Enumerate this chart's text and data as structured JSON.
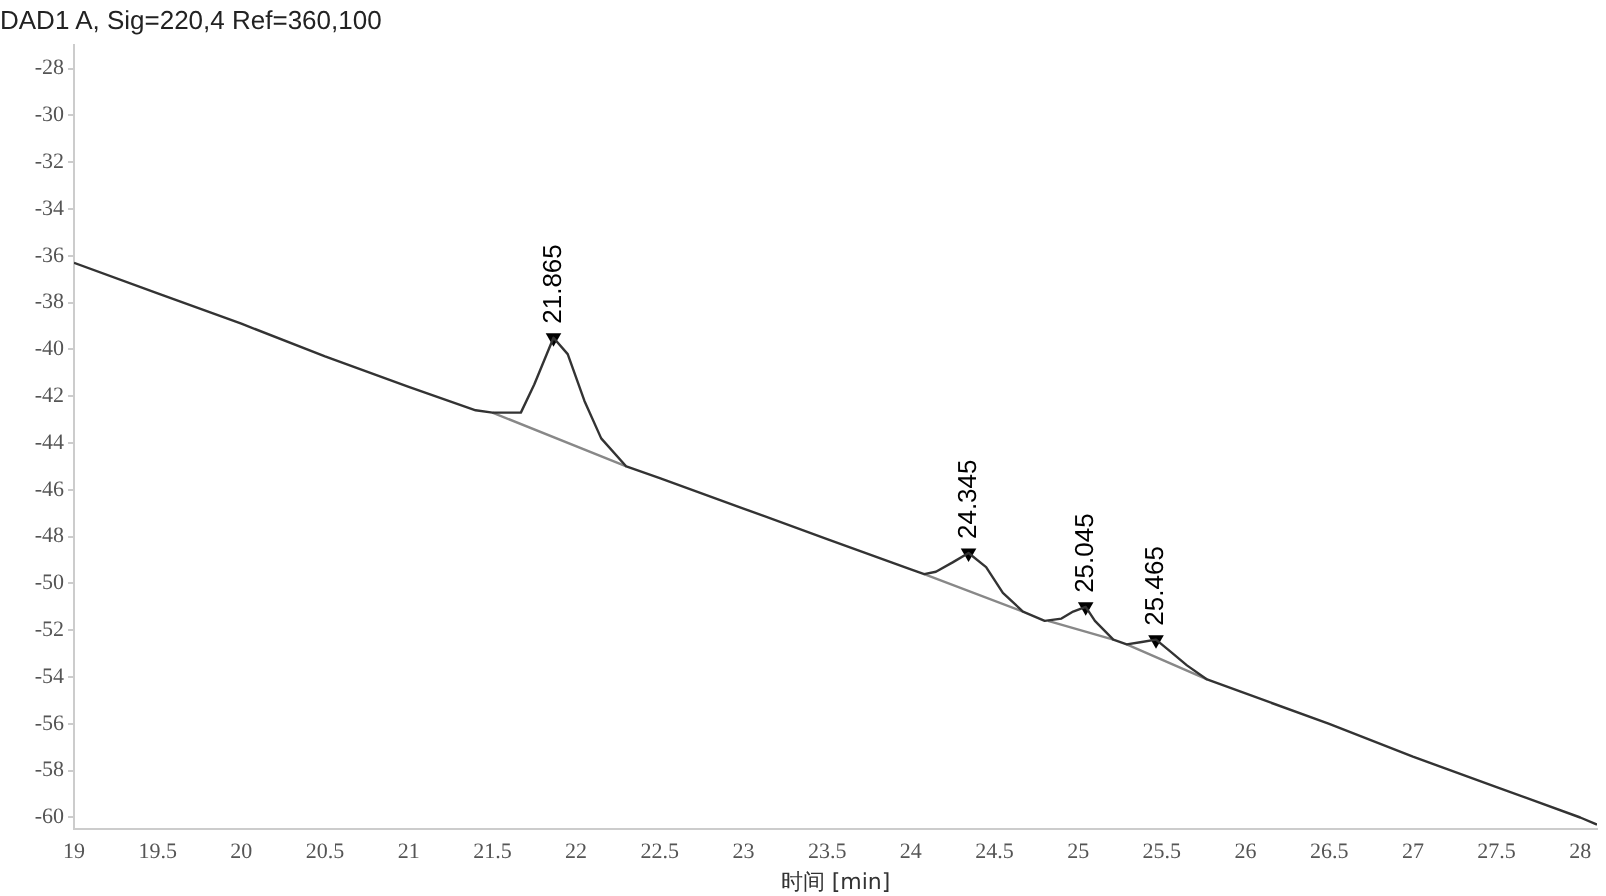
{
  "chart_data": {
    "type": "line",
    "title": "DAD1 A, Sig=220,4 Ref=360,100",
    "xlabel": "时间 [min]",
    "series": [
      {
        "color": "#333333",
        "x": [
          19,
          19.5,
          20,
          20.5,
          21,
          21.4,
          21.5,
          21.67,
          21.75,
          21.865,
          21.95,
          22.05,
          22.15,
          22.3,
          22.5,
          23,
          23.5,
          24,
          24.08,
          24.15,
          24.25,
          24.345,
          24.45,
          24.55,
          24.67,
          24.8,
          24.9,
          24.97,
          25.045,
          25.1,
          25.21,
          25.29,
          25.38,
          25.465,
          25.55,
          25.65,
          25.77,
          26,
          26.5,
          27,
          27.5,
          28,
          28.1
        ],
        "values": [
          -36.3,
          -37.6,
          -38.9,
          -40.3,
          -41.6,
          -42.6,
          -42.7,
          -42.7,
          -41.5,
          -39.5,
          -40.2,
          -42.2,
          -43.8,
          -45.0,
          -45.5,
          -46.8,
          -48.1,
          -49.4,
          -49.6,
          -49.5,
          -49.1,
          -48.7,
          -49.3,
          -50.4,
          -51.2,
          -51.6,
          -51.5,
          -51.2,
          -51.0,
          -51.6,
          -52.4,
          -52.6,
          -52.5,
          -52.4,
          -52.9,
          -53.5,
          -54.1,
          -54.7,
          -56.0,
          -57.4,
          -58.7,
          -60.0,
          -60.3
        ]
      },
      {
        "color": "#888888",
        "x": [
          21.5,
          22.3,
          23,
          24.08,
          24.67,
          24.75,
          24.82,
          25.21,
          25.25,
          25.29,
          25.77
        ],
        "values": [
          -42.7,
          -45.0,
          null,
          -49.6,
          -51.2,
          null,
          -51.6,
          -52.4,
          null,
          -52.6,
          -54.1
        ]
      },
      {
        "type": "scatter",
        "color": "#000000",
        "marker": "triangle",
        "x": [
          21.865,
          24.345,
          25.045,
          25.465
        ],
        "values": [
          -39.5,
          -48.7,
          -51.0,
          -52.4
        ]
      }
    ],
    "annotations": [
      {
        "text": "21.865",
        "x": 21.865,
        "y": -39.5
      },
      {
        "text": "24.345",
        "x": 24.345,
        "y": -48.7
      },
      {
        "text": "25.045",
        "x": 25.045,
        "y": -51.0
      },
      {
        "text": "25.465",
        "x": 25.465,
        "y": -52.4
      }
    ],
    "xlim": [
      19,
      28.1
    ],
    "xticks": [
      19,
      19.5,
      20,
      20.5,
      21,
      21.5,
      22,
      22.5,
      23,
      23.5,
      24,
      24.5,
      25,
      25.5,
      26,
      26.5,
      27,
      27.5,
      28
    ],
    "ylim": [
      -60.5,
      -27
    ],
    "yticks": [
      -28,
      -30,
      -32,
      -34,
      -36,
      -38,
      -40,
      -42,
      -44,
      -46,
      -48,
      -50,
      -52,
      -54,
      -56,
      -58,
      -60
    ],
    "grid": false,
    "legend": false,
    "marker": "none",
    "line_style": "solid"
  }
}
